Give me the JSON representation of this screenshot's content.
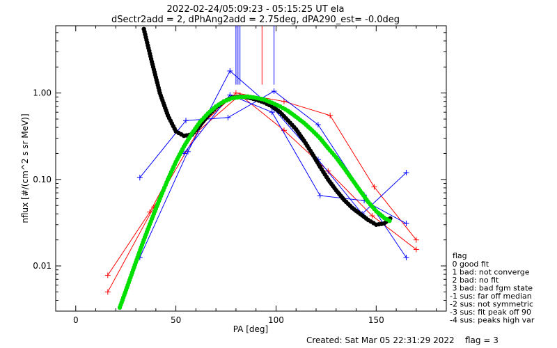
{
  "chart_data": {
    "type": "scatter",
    "title": "2022-02-24/05:09:23 - 05:15:25 UT ela",
    "subtitle": "dSectr2add = 2, dPhAng2add = 2.75deg, dPA290_est=  -0.0deg",
    "xlabel": "PA [deg]",
    "ylabel": "nflux [#/(cm^2 s sr MeV)]",
    "xlim": [
      -10,
      185
    ],
    "ylim": [
      0.003,
      6
    ],
    "yscale": "log",
    "grid": false,
    "legend_position": "right",
    "x_ticks": [
      "0",
      "50",
      "100",
      "150"
    ],
    "x_tick_values": [
      0,
      50,
      100,
      150
    ],
    "y_ticks": [
      "0.01",
      "0.10",
      "1.00"
    ],
    "y_tick_values": [
      0.01,
      0.1,
      1.0
    ],
    "series": [
      {
        "color": "#ff0000",
        "style": "line+plus",
        "x": [
          16,
          37,
          58,
          80,
          104,
          127,
          149,
          170
        ],
        "y": [
          0.0078,
          0.042,
          0.34,
          1.0,
          0.8,
          0.55,
          0.082,
          0.02
        ]
      },
      {
        "color": "#ff0000",
        "style": "line+plus",
        "x": [
          16,
          39,
          61,
          82,
          104,
          126,
          148,
          170
        ],
        "y": [
          0.005,
          0.048,
          0.36,
          0.95,
          0.37,
          0.125,
          0.038,
          0.0155
        ]
      },
      {
        "color": "#0000ff",
        "style": "line+plus",
        "x": [
          32,
          55,
          76,
          99,
          121,
          144,
          165
        ],
        "y": [
          0.105,
          0.48,
          0.52,
          1.05,
          0.43,
          0.066,
          0.0125
        ]
      },
      {
        "color": "#0000ff",
        "style": "line+plus",
        "x": [
          32,
          56,
          77,
          99,
          121,
          143,
          165
        ],
        "y": [
          0.0125,
          0.21,
          1.8,
          0.65,
          0.17,
          0.04,
          0.12
        ]
      },
      {
        "color": "#0000ff",
        "style": "line+plus",
        "x": [
          54,
          77,
          98,
          122,
          144,
          165
        ],
        "y": [
          0.2,
          0.95,
          0.6,
          0.065,
          0.057,
          0.031
        ]
      },
      {
        "color": "#000000",
        "style": "thick-dots",
        "x": [
          34,
          38,
          42,
          46,
          50,
          54,
          58,
          62,
          66,
          70,
          74,
          78,
          82,
          86,
          90,
          94,
          98,
          102,
          106,
          110,
          114,
          118,
          122,
          126,
          130,
          134,
          138,
          142,
          146,
          150,
          154,
          158
        ],
        "y": [
          5.5,
          2.3,
          1.0,
          0.55,
          0.36,
          0.32,
          0.33,
          0.42,
          0.55,
          0.68,
          0.8,
          0.88,
          0.91,
          0.89,
          0.84,
          0.78,
          0.7,
          0.6,
          0.48,
          0.38,
          0.28,
          0.2,
          0.14,
          0.1,
          0.075,
          0.058,
          0.047,
          0.04,
          0.034,
          0.03,
          0.031,
          0.037
        ]
      },
      {
        "color": "#00e000",
        "style": "thick-dots",
        "x": [
          22,
          26,
          30,
          34,
          38,
          42,
          46,
          50,
          54,
          58,
          62,
          66,
          70,
          74,
          78,
          82,
          86,
          90,
          94,
          98,
          102,
          106,
          110,
          114,
          118,
          122,
          126,
          130,
          134,
          138,
          142,
          146,
          150,
          154,
          158
        ],
        "y": [
          0.0033,
          0.006,
          0.011,
          0.02,
          0.035,
          0.06,
          0.1,
          0.16,
          0.24,
          0.34,
          0.46,
          0.58,
          0.7,
          0.8,
          0.87,
          0.9,
          0.91,
          0.88,
          0.84,
          0.77,
          0.7,
          0.62,
          0.53,
          0.45,
          0.37,
          0.3,
          0.23,
          0.18,
          0.135,
          0.1,
          0.074,
          0.055,
          0.043,
          0.036,
          0.032
        ]
      }
    ],
    "vlines": [
      {
        "x": 80,
        "color": "#0000ff",
        "top": "top"
      },
      {
        "x": 81,
        "color": "#0000ff",
        "top": "top"
      },
      {
        "x": 82,
        "color": "#0000ff",
        "top": "top"
      },
      {
        "x": 93,
        "color": "#ff0000",
        "top": "top"
      },
      {
        "x": 99,
        "color": "#0000ff",
        "top": "top"
      }
    ]
  },
  "legend": {
    "title": "flag",
    "entries": [
      " 0 good fit",
      " 1 bad: not converge",
      " 2 bad: no fit",
      " 3 bad: bad fgm state",
      "-1 sus: far off median",
      "-2 sus: not symmetric",
      "-3 sus: fit peak off 90",
      "-4 sus: peaks high var"
    ]
  },
  "footer": {
    "created": "Created: Sat Mar 05 22:31:29 2022",
    "flag": "flag = 3"
  }
}
